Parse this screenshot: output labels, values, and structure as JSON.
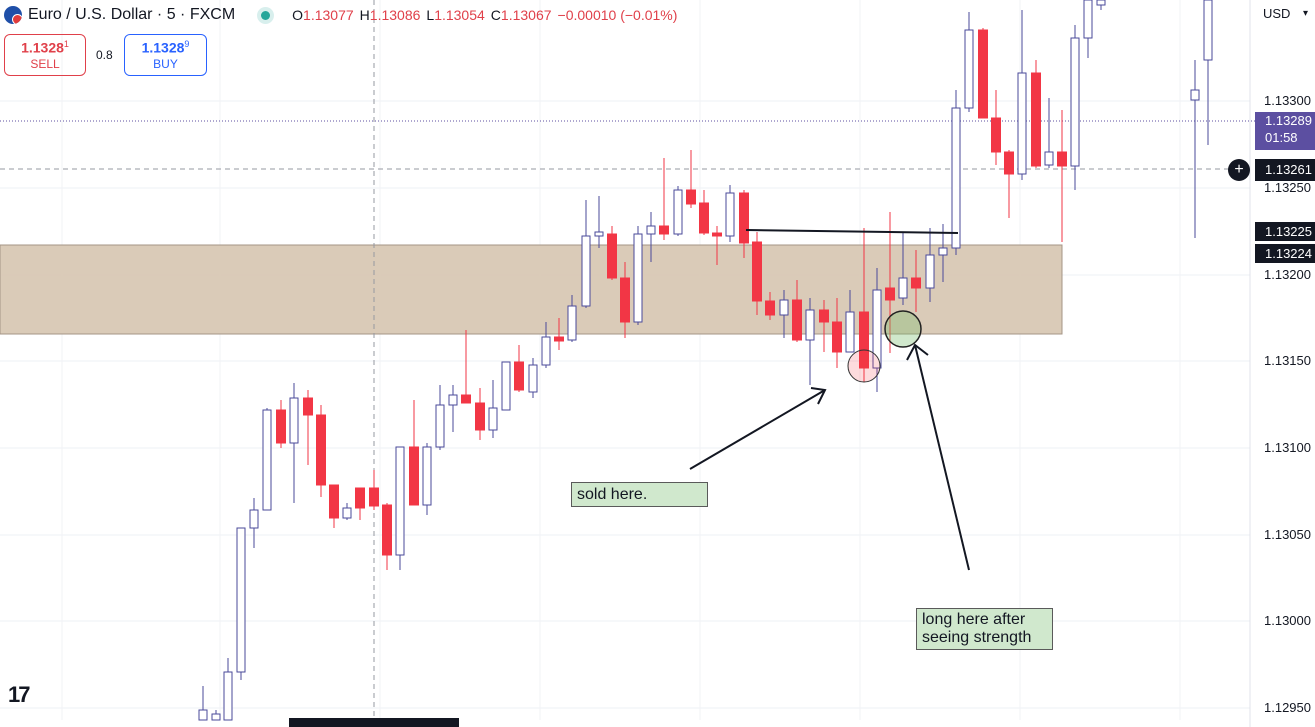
{
  "header": {
    "symbol": "Euro / U.S. Dollar · 5 · FXCM",
    "ohlc": [
      {
        "k": "O",
        "v": "1.13077"
      },
      {
        "k": "H",
        "v": "1.13086"
      },
      {
        "k": "L",
        "v": "1.13054"
      },
      {
        "k": "C",
        "v": "1.13067"
      },
      {
        "k": "",
        "v": "−0.00010 (−0.01%)"
      }
    ]
  },
  "trade": {
    "sell_price": "1.1328",
    "sell_sup": "1",
    "sell_label": "SELL",
    "spread": "0.8",
    "buy_price": "1.1328",
    "buy_sup": "9",
    "buy_label": "BUY"
  },
  "axis": {
    "currency": "USD",
    "ticks": [
      "1.13300",
      "1.13250",
      "1.13200",
      "1.13150",
      "1.13100",
      "1.13050",
      "1.13000",
      "1.12950"
    ],
    "last_price": "1.13289",
    "countdown": "01:58",
    "crosshair_price": "1.13261",
    "level_1": "1.13225",
    "level_2": "1.13224"
  },
  "annotations": {
    "sold": "sold here.",
    "long": "long here after seeing strength"
  },
  "colors": {
    "up_outline": "#4a4a9a",
    "down_fill": "#f23645",
    "zone": "#d9c9b5",
    "note_bg": "#d0e8cd",
    "price_tag": "#5c4fa1",
    "dark_tag": "#131722"
  },
  "logo": "17"
}
